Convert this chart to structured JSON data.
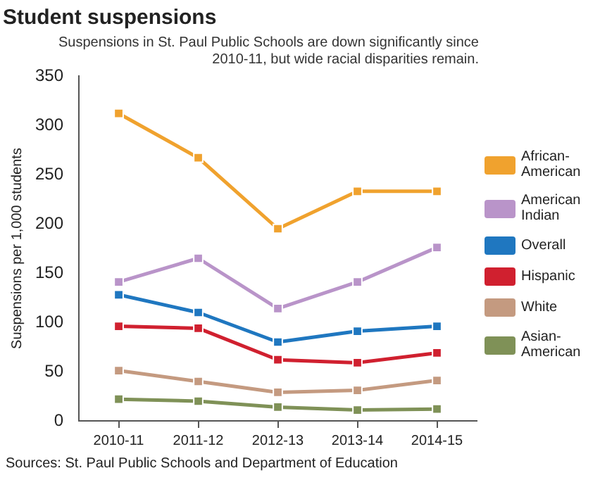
{
  "chart_data": {
    "type": "line",
    "title": "Student suspensions",
    "subtitle": "Suspensions in St. Paul Public Schools are down significantly since 2010-11, but wide racial disparities remain.",
    "ylabel": "Suspensions per 1,000 students",
    "categories": [
      "2010-11",
      "2011-12",
      "2012-13",
      "2013-14",
      "2014-15"
    ],
    "series": [
      {
        "name": "African-American",
        "color": "#f0a22e",
        "values": [
          312,
          267,
          195,
          233,
          233
        ]
      },
      {
        "name": "American Indian",
        "color": "#b994c9",
        "values": [
          141,
          165,
          114,
          141,
          176
        ]
      },
      {
        "name": "Overall",
        "color": "#1f77c0",
        "values": [
          128,
          110,
          80,
          91,
          96
        ]
      },
      {
        "name": "Hispanic",
        "color": "#d0202f",
        "values": [
          96,
          94,
          62,
          59,
          69
        ]
      },
      {
        "name": "White",
        "color": "#c49a80",
        "values": [
          51,
          40,
          29,
          31,
          41
        ]
      },
      {
        "name": "Asian-American",
        "color": "#7f9157",
        "values": [
          22,
          20,
          14,
          11,
          12
        ]
      }
    ],
    "ylim": [
      0,
      350
    ],
    "yticks": [
      0,
      50,
      100,
      150,
      200,
      250,
      300,
      350
    ],
    "grid": false,
    "legend": "right",
    "marker": "square",
    "line_style": "solid",
    "annotations": [
      "Sources: St. Paul Public Schools and Department of Education"
    ]
  }
}
